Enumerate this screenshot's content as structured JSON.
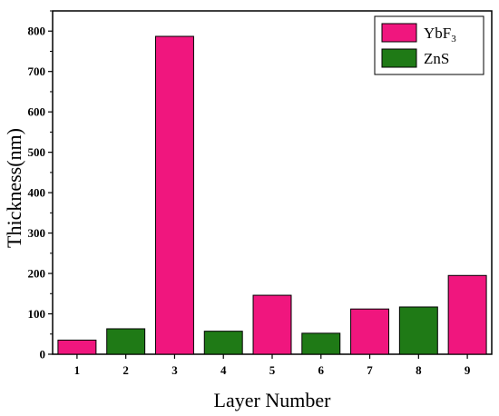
{
  "chart_data": {
    "type": "bar",
    "categories": [
      "1",
      "2",
      "3",
      "4",
      "5",
      "6",
      "7",
      "8",
      "9"
    ],
    "values": [
      35,
      63,
      787,
      57,
      146,
      52,
      112,
      117,
      195
    ],
    "materials": [
      "YbF3",
      "ZnS",
      "YbF3",
      "ZnS",
      "YbF3",
      "ZnS",
      "YbF3",
      "ZnS",
      "YbF3"
    ],
    "xlabel": "Layer Number",
    "ylabel": "Thickness(nm)",
    "ylim": [
      0,
      850
    ],
    "yticks": [
      "0",
      "100",
      "200",
      "300",
      "400",
      "500",
      "600",
      "700",
      "800"
    ],
    "ytick_values": [
      0,
      100,
      200,
      300,
      400,
      500,
      600,
      700,
      800
    ],
    "legend": {
      "placement": "top-right",
      "entries": [
        {
          "key": "YbF3",
          "label_main": "YbF",
          "label_sub": "3",
          "color": "#f0167e"
        },
        {
          "key": "ZnS",
          "label_main": "ZnS",
          "label_sub": "",
          "color": "#1f7a16"
        }
      ]
    },
    "colors": {
      "YbF3": "#f0167e",
      "ZnS": "#1f7a16",
      "axis": "#000000"
    },
    "grid": false
  }
}
